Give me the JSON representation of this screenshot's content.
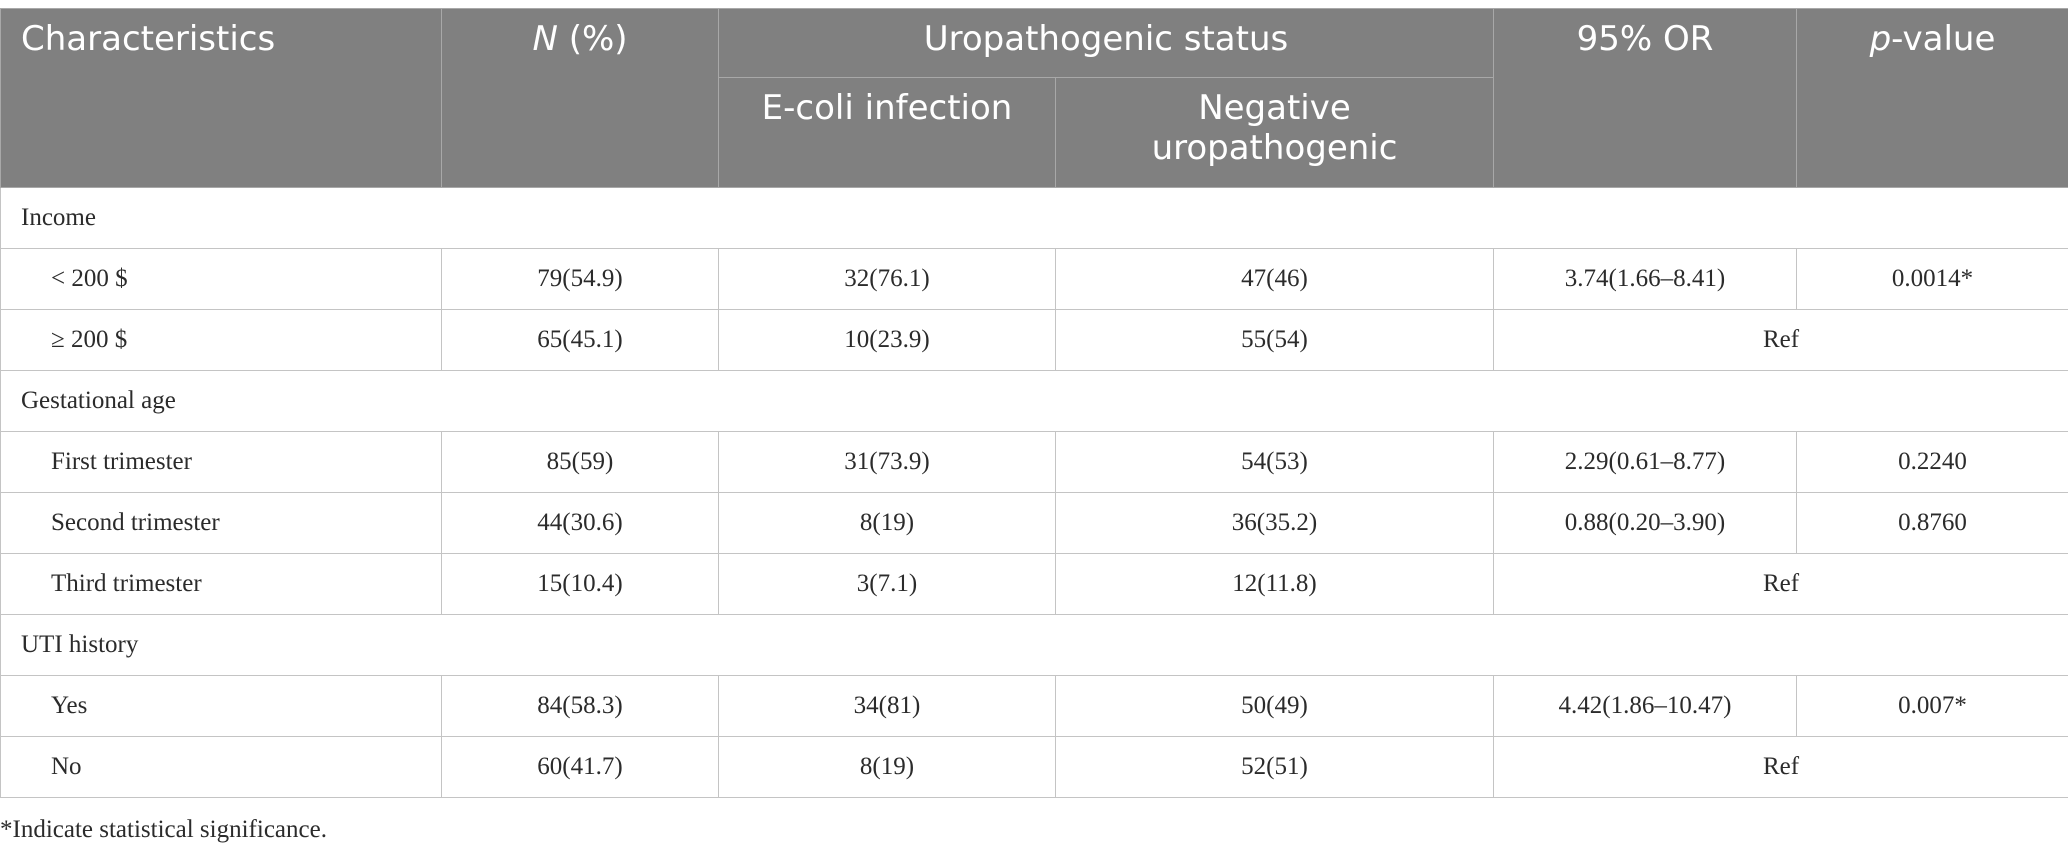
{
  "table": {
    "headers": {
      "characteristics": "Characteristics",
      "n_pct_italic": "N",
      "n_pct_rest": " (%)",
      "uropathogenic_status": "Uropathogenic status",
      "ecoli": "E-coli infection",
      "negative": "Negative uropathogenic",
      "or": "95% OR",
      "pvalue_italic": "p",
      "pvalue_rest": "-value"
    },
    "groups": [
      {
        "label": "Income",
        "rows": [
          {
            "label": "< 200 $",
            "n": "79(54.9)",
            "ecoli": "32(76.1)",
            "negative": "47(46)",
            "or": "3.74(1.66–8.41)",
            "p": "0.0014*"
          },
          {
            "label": "≥ 200 $",
            "n": "65(45.1)",
            "ecoli": "10(23.9)",
            "negative": "55(54)",
            "ref": "Ref"
          }
        ]
      },
      {
        "label": "Gestational age",
        "rows": [
          {
            "label": "First trimester",
            "n": "85(59)",
            "ecoli": "31(73.9)",
            "negative": "54(53)",
            "or": "2.29(0.61–8.77)",
            "p": "0.2240"
          },
          {
            "label": "Second trimester",
            "n": "44(30.6)",
            "ecoli": "8(19)",
            "negative": "36(35.2)",
            "or": "0.88(0.20–3.90)",
            "p": "0.8760"
          },
          {
            "label": "Third trimester",
            "n": "15(10.4)",
            "ecoli": "3(7.1)",
            "negative": "12(11.8)",
            "ref": "Ref"
          }
        ]
      },
      {
        "label": "UTI history",
        "rows": [
          {
            "label": "Yes",
            "n": "84(58.3)",
            "ecoli": "34(81)",
            "negative": "50(49)",
            "or": "4.42(1.86–10.47)",
            "p": "0.007*"
          },
          {
            "label": "No",
            "n": "60(41.7)",
            "ecoli": "8(19)",
            "negative": "52(51)",
            "ref": "Ref"
          }
        ]
      }
    ]
  },
  "footnote": "*Indicate statistical significance."
}
